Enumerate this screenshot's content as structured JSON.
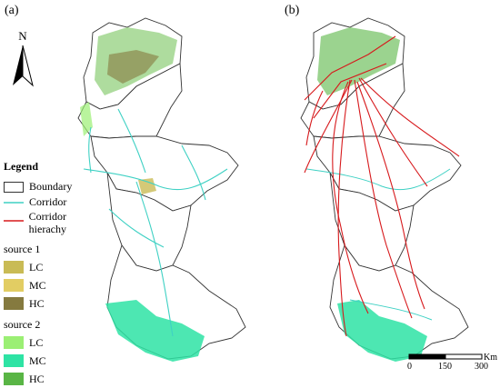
{
  "panels": {
    "a": "(a)",
    "b": "(b)"
  },
  "north": {
    "label": "N",
    "icon": "north-arrow-icon"
  },
  "legend": {
    "title": "Legend",
    "boundary": "Boundary",
    "corridor": "Corridor",
    "corridor_hierarchy": "Corridor hierachy",
    "source1": {
      "label": "source 1",
      "items": [
        "LC",
        "MC",
        "HC"
      ],
      "colors": [
        "#c9bb55",
        "#e2cd63",
        "#857a3f"
      ]
    },
    "source2": {
      "label": "source 2",
      "items": [
        "LC",
        "MC",
        "HC"
      ],
      "colors": [
        "#9bef74",
        "#2ee3a4",
        "#59b545"
      ]
    }
  },
  "colors": {
    "boundary": "#333333",
    "corridor": "#3fd1c4",
    "hierarchy": "#d7191c"
  },
  "scale": {
    "ticks": [
      "0",
      "150",
      "300"
    ],
    "unit": "Km"
  }
}
